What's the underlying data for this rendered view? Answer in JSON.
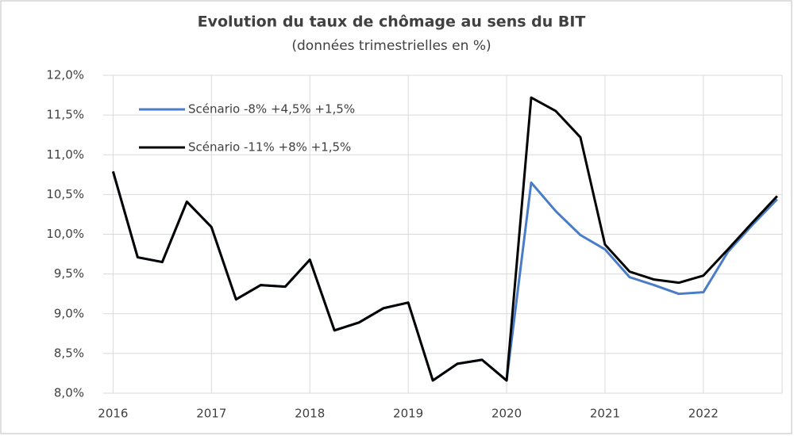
{
  "chart_data": {
    "type": "line",
    "title": "Evolution du taux de chômage au sens du BIT",
    "subtitle": "(données trimestrielles en %)",
    "x": [
      2016,
      2016.25,
      2016.5,
      2016.75,
      2017,
      2017.25,
      2017.5,
      2017.75,
      2018,
      2018.25,
      2018.5,
      2018.75,
      2019,
      2019.25,
      2019.5,
      2019.75,
      2020,
      2020.25,
      2020.5,
      2020.75,
      2021,
      2021.25,
      2021.5,
      2021.75,
      2022,
      2022.25,
      2022.5,
      2022.75
    ],
    "series": [
      {
        "name": "Scénario -8% +4,5% +1,5%",
        "color": "#4a7cc7",
        "values": [
          10.79,
          9.71,
          9.65,
          10.41,
          10.09,
          9.18,
          9.36,
          9.34,
          9.68,
          8.79,
          8.89,
          9.07,
          9.14,
          8.16,
          8.37,
          8.42,
          8.16,
          10.65,
          10.29,
          9.99,
          9.81,
          9.46,
          9.36,
          9.25,
          9.27,
          9.78,
          10.12,
          10.44
        ]
      },
      {
        "name": "Scénario -11% +8% +1,5%",
        "color": "#000000",
        "values": [
          10.79,
          9.71,
          9.65,
          10.41,
          10.09,
          9.18,
          9.36,
          9.34,
          9.68,
          8.79,
          8.89,
          9.07,
          9.14,
          8.16,
          8.37,
          8.42,
          8.16,
          11.72,
          11.55,
          11.22,
          9.87,
          9.53,
          9.43,
          9.39,
          9.48,
          9.81,
          10.15,
          10.48
        ]
      }
    ],
    "xlim": [
      2015.9,
      2022.8
    ],
    "xticks": [
      2016,
      2017,
      2018,
      2019,
      2020,
      2021,
      2022
    ],
    "ylim": [
      8,
      12
    ],
    "yticks": [
      {
        "value": 8,
        "label": "8,0%"
      },
      {
        "value": 8.5,
        "label": "8,5%"
      },
      {
        "value": 9,
        "label": "9,0%"
      },
      {
        "value": 9.5,
        "label": "9,5%"
      },
      {
        "value": 10,
        "label": "10,0%"
      },
      {
        "value": 10.5,
        "label": "10,5%"
      },
      {
        "value": 11,
        "label": "11,0%"
      },
      {
        "value": 11.5,
        "label": "11,5%"
      },
      {
        "value": 12,
        "label": "12,0%"
      }
    ],
    "grid": true,
    "legend": "upper-left"
  }
}
